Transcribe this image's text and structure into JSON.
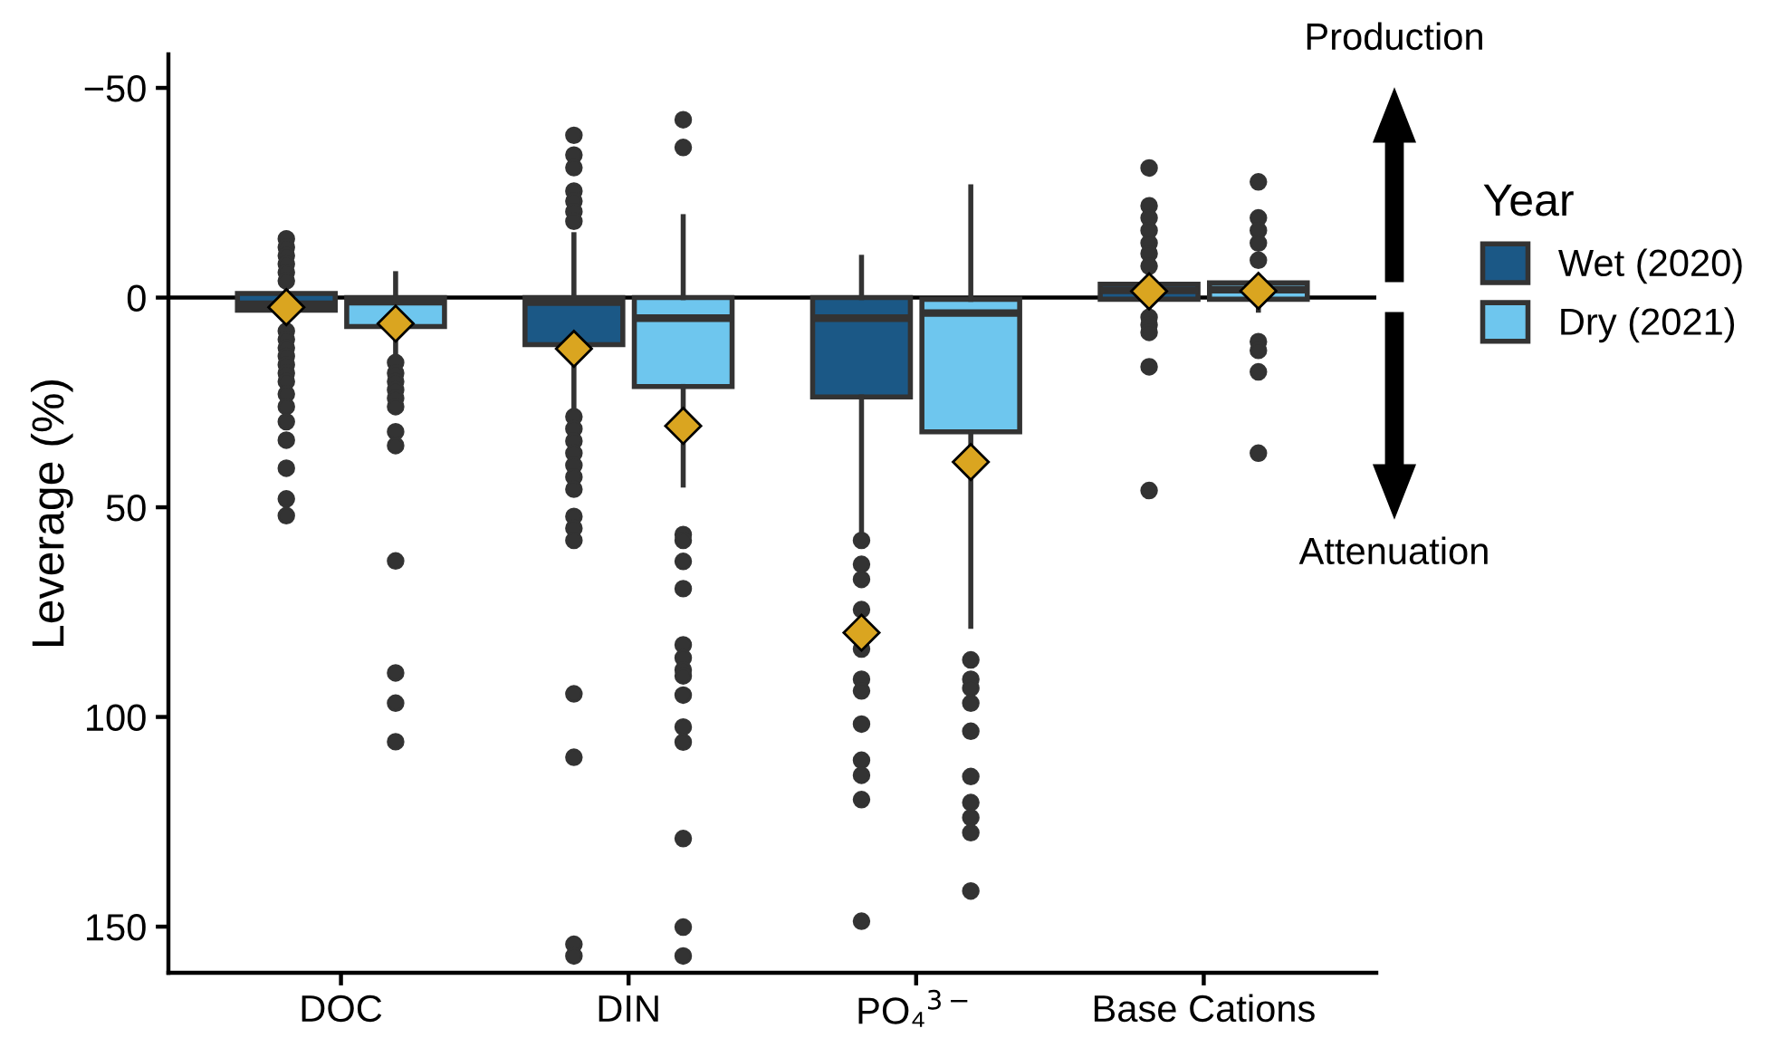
{
  "chart_data": {
    "type": "box",
    "ylabel": "Leverage (%)",
    "legend_title": "Year",
    "legend": "right",
    "grid": false,
    "categories": [
      "DOC",
      "DIN",
      "PO₄$^{3−}$",
      "Base Cations"
    ],
    "ylim": [
      161,
      -58
    ],
    "yticks": [
      {
        "value": -50,
        "label": "−50"
      },
      0,
      50,
      100,
      150
    ],
    "ref_lines": [
      {
        "axis": "y",
        "value": 0,
        "color": "#000000"
      }
    ],
    "annotations": [
      "Production",
      "Attenuation"
    ],
    "series": [
      {
        "name": "Wet (2020)",
        "color": "#1b5886",
        "boxes": [
          {
            "low": -2,
            "q1": -1,
            "median": 1.6,
            "q3": 3,
            "high": 6,
            "mean": 2.3,
            "outliers": [
              -14,
              -12,
              -10,
              -8,
              -6,
              -4,
              8,
              10,
              12,
              14,
              16,
              18,
              20,
              23,
              26,
              29.6,
              34,
              40.7,
              48,
              52
            ]
          },
          {
            "low": -15,
            "q1": 0,
            "median": 1.1,
            "q3": 11.2,
            "high": 26,
            "mean": 12.2,
            "outliers": [
              -38.7,
              -34,
              -31,
              -25.4,
              -23,
              -20.5,
              -18.2,
              28.4,
              31.3,
              34.2,
              37.1,
              40,
              42.8,
              45.7,
              52.2,
              55,
              57.9,
              94.5,
              109.6,
              154.2,
              157
            ]
          },
          {
            "low": -9.6,
            "q1": 0,
            "median": 4.9,
            "q3": 23.7,
            "high": 55.7,
            "mean": 79.9,
            "outliers": [
              57.9,
              63.6,
              67.2,
              74.4,
              83.8,
              91,
              93.8,
              101.7,
              110.3,
              113.9,
              119.7,
              148.7
            ]
          },
          {
            "low": -5,
            "q1": -3.2,
            "median": -1.7,
            "q3": 0.4,
            "high": 3,
            "mean": -1.5,
            "outliers": [
              -30.9,
              -21.9,
              -19,
              -16,
              -13,
              -10.5,
              -7.5,
              4.7,
              6.5,
              8.3,
              16.5,
              46
            ]
          }
        ]
      },
      {
        "name": "Dry (2021)",
        "color": "#6ec6ee",
        "boxes": [
          {
            "low": -5.7,
            "q1": 0,
            "median": 1,
            "q3": 6.9,
            "high": 13,
            "mean": 6.2,
            "outliers": [
              15.5,
              18,
              20,
              22,
              24,
              26,
              32,
              35.3,
              62.8,
              89.5,
              96.7,
              105.9
            ]
          },
          {
            "low": -19.3,
            "q1": 0,
            "median": 4.9,
            "q3": 21.2,
            "high": 44.7,
            "mean": 30.6,
            "outliers": [
              -42.4,
              -35.8,
              56.5,
              57.9,
              62.9,
              69.4,
              82.8,
              85.9,
              88.8,
              90.2,
              94.8,
              102.4,
              106,
              129,
              150.1,
              157
            ]
          },
          {
            "low": -26.4,
            "q1": 0.4,
            "median": 3.7,
            "q3": 32,
            "high": 78.4,
            "mean": 39.2,
            "outliers": [
              86.4,
              91,
              93.1,
              96.7,
              103.4,
              114.2,
              120.4,
              124,
              127.6,
              141.5
            ]
          },
          {
            "low": -5,
            "q1": -3.5,
            "median": -1.9,
            "q3": 0.4,
            "high": 3,
            "mean": -1.6,
            "outliers": [
              -27.6,
              -19,
              -16,
              -13,
              -8.9,
              10.5,
              12.6,
              17.7,
              37.1
            ]
          }
        ]
      }
    ]
  }
}
